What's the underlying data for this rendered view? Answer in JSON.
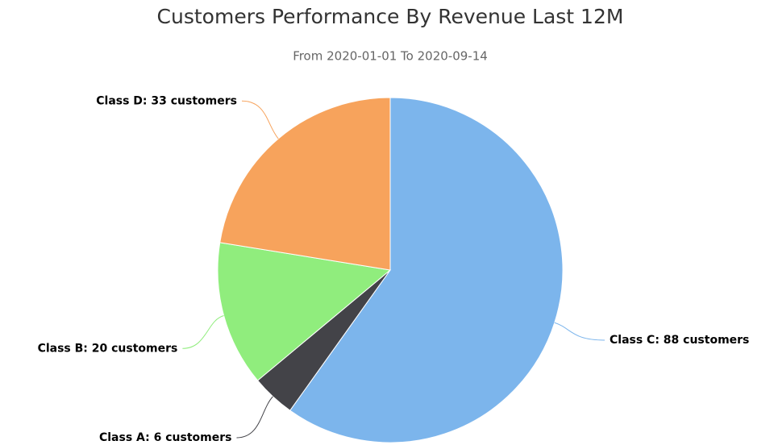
{
  "chart_data": {
    "type": "pie",
    "title": "Customers Performance By Revenue Last 12M",
    "subtitle": "From 2020-01-01 To 2020-09-14",
    "categories": [
      "Class C",
      "Class A",
      "Class B",
      "Class D"
    ],
    "values": [
      88,
      6,
      20,
      33
    ],
    "value_labels": [
      "Class C: 88 customers",
      "Class A: 6 customers",
      "Class B: 20 customers",
      "Class D: 33 customers"
    ],
    "colors": [
      "#7cb5ec",
      "#434348",
      "#90ed7d",
      "#f7a35c"
    ]
  }
}
